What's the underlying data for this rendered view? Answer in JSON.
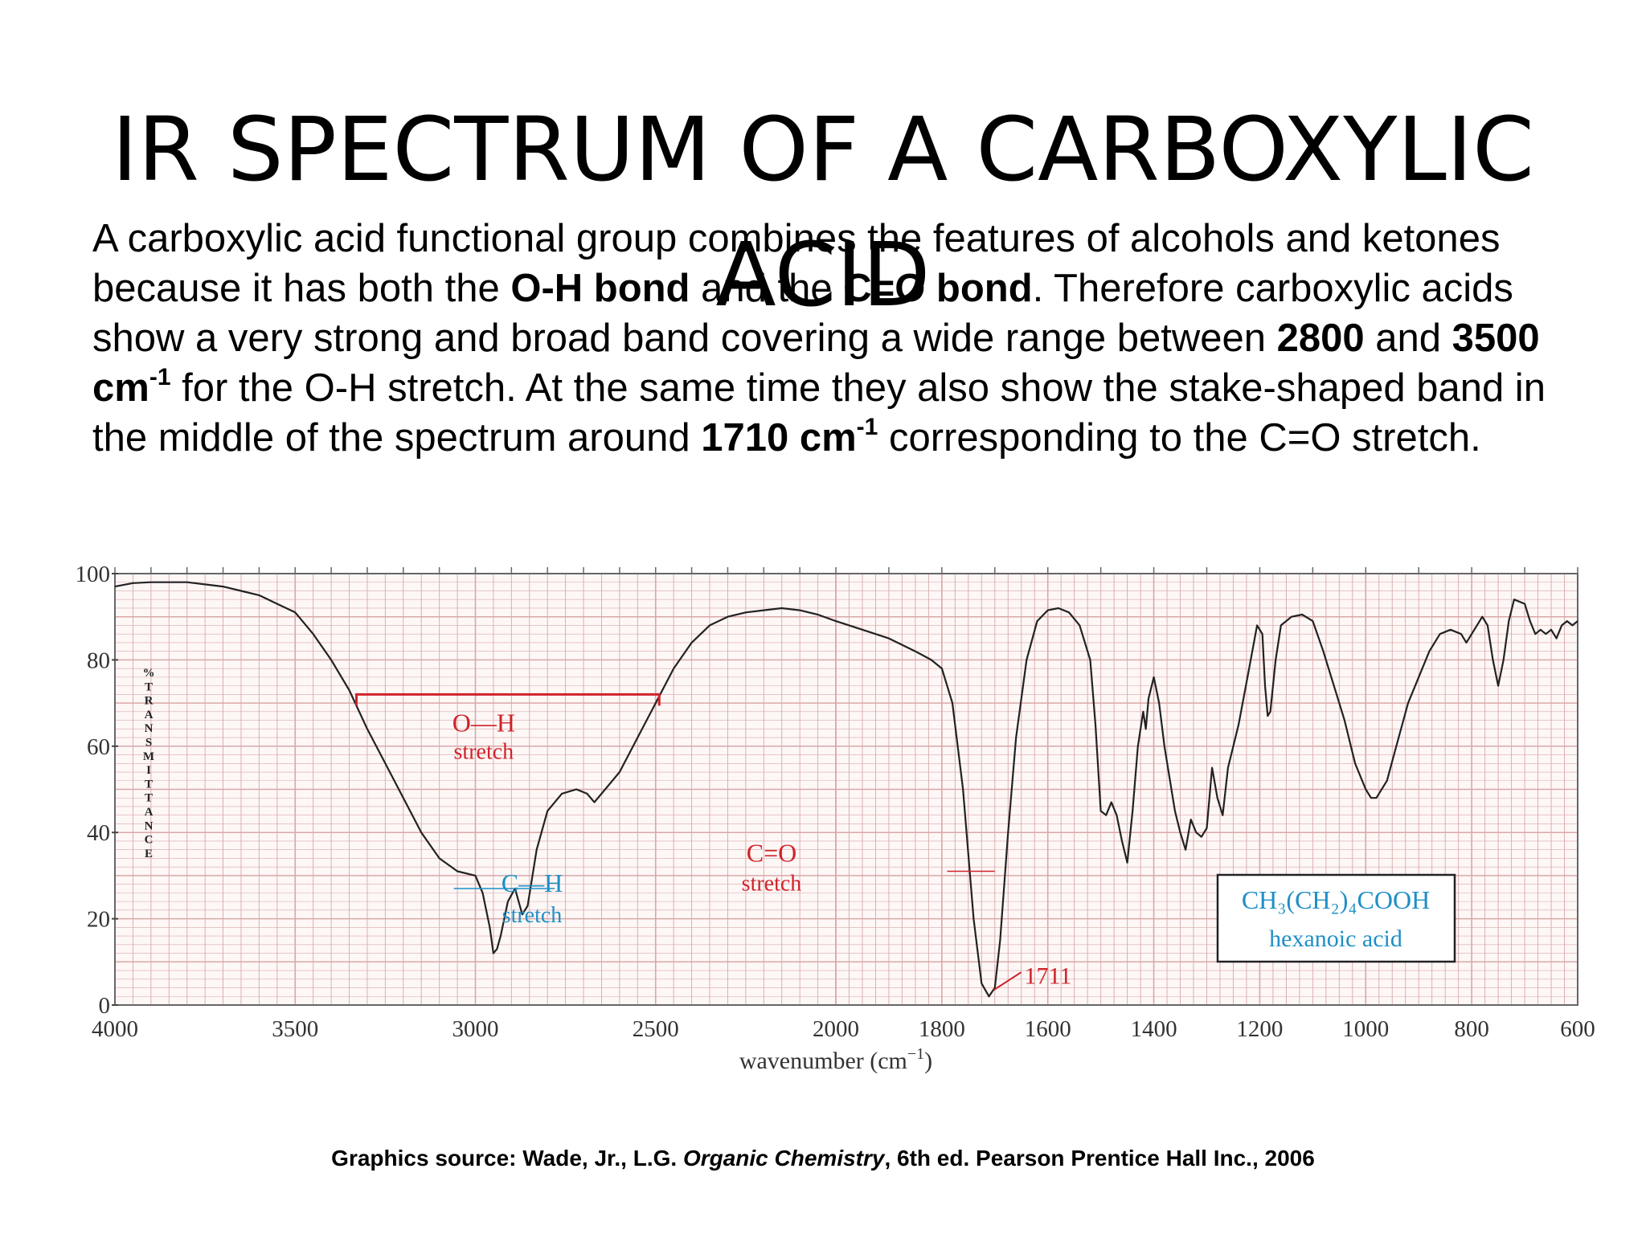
{
  "slide": {
    "title_line1": "IR SPECTRUM OF A CARBOXYLIC",
    "title_line2": "ACID"
  },
  "body": {
    "p1": "A carboxylic acid functional group combines the features of alcohols and ketones because it has both the ",
    "b1": "O-H bond",
    "p2": " and the ",
    "b2": "C=O bond",
    "p3": ". Therefore carboxylic acids show a very strong and broad band covering a wide range between ",
    "b3": "2800",
    "p4": " and ",
    "b4": "3500 cm",
    "sup1": "-1",
    "p5": " for the O-H stretch. At the same time they also show the stake-shaped band in the middle of the spectrum around ",
    "b5": "1710 cm",
    "sup2": "-1",
    "p6": " corresponding to the C=O stretch."
  },
  "source": {
    "prefix": "Graphics source: Wade, Jr., L.G. ",
    "book": "Organic Chemistry",
    "suffix": ", 6th ed. Pearson Prentice Hall Inc., 2006"
  },
  "colors": {
    "grid": "#d8a8a8",
    "trace": "#222222",
    "annotation_red": "#d0232a",
    "annotation_blue": "#1f8fc6"
  },
  "chart_data": {
    "type": "line",
    "xlabel": "wavenumber (cm",
    "xlabel_sup": "−1",
    "xlabel_close": ")",
    "ylabel": "%TRANSMITTANCE",
    "ylim": [
      0,
      100
    ],
    "yticks": [
      "0",
      "20",
      "40",
      "60",
      "80",
      "100"
    ],
    "xticks": [
      "4000",
      "3500",
      "3000",
      "2500",
      "2000",
      "1800",
      "1600",
      "1400",
      "1200",
      "1000",
      "800",
      "600"
    ],
    "x_scale": "split: 4000-2000 at half scale, 2000-600 at double scale",
    "grid": true,
    "series": [
      {
        "points": [
          [
            4000,
            97
          ],
          [
            3950,
            97.8
          ],
          [
            3900,
            98
          ],
          [
            3850,
            98
          ],
          [
            3800,
            98
          ],
          [
            3750,
            97.5
          ],
          [
            3700,
            97
          ],
          [
            3650,
            96
          ],
          [
            3600,
            95
          ],
          [
            3550,
            93
          ],
          [
            3500,
            91
          ],
          [
            3450,
            86
          ],
          [
            3400,
            80
          ],
          [
            3350,
            73
          ],
          [
            3300,
            64
          ],
          [
            3250,
            56
          ],
          [
            3200,
            48
          ],
          [
            3150,
            40
          ],
          [
            3100,
            34
          ],
          [
            3050,
            31
          ],
          [
            3000,
            30
          ],
          [
            2980,
            26
          ],
          [
            2960,
            18
          ],
          [
            2950,
            12
          ],
          [
            2940,
            13
          ],
          [
            2930,
            16
          ],
          [
            2910,
            24
          ],
          [
            2890,
            27
          ],
          [
            2870,
            21
          ],
          [
            2855,
            23
          ],
          [
            2830,
            36
          ],
          [
            2800,
            45
          ],
          [
            2760,
            49
          ],
          [
            2720,
            50
          ],
          [
            2690,
            49
          ],
          [
            2670,
            47
          ],
          [
            2640,
            50
          ],
          [
            2600,
            54
          ],
          [
            2550,
            62
          ],
          [
            2500,
            70
          ],
          [
            2450,
            78
          ],
          [
            2400,
            84
          ],
          [
            2350,
            88
          ],
          [
            2300,
            90
          ],
          [
            2250,
            91
          ],
          [
            2200,
            91.5
          ],
          [
            2150,
            92
          ],
          [
            2100,
            91.5
          ],
          [
            2050,
            90.5
          ],
          [
            2000,
            89
          ],
          [
            1950,
            87
          ],
          [
            1900,
            85
          ],
          [
            1850,
            82
          ],
          [
            1820,
            80
          ],
          [
            1800,
            78
          ],
          [
            1780,
            70
          ],
          [
            1760,
            50
          ],
          [
            1740,
            20
          ],
          [
            1725,
            5
          ],
          [
            1711,
            2
          ],
          [
            1700,
            4
          ],
          [
            1690,
            15
          ],
          [
            1675,
            40
          ],
          [
            1660,
            62
          ],
          [
            1640,
            80
          ],
          [
            1620,
            89
          ],
          [
            1600,
            91.5
          ],
          [
            1580,
            92
          ],
          [
            1560,
            91
          ],
          [
            1540,
            88
          ],
          [
            1520,
            80
          ],
          [
            1510,
            65
          ],
          [
            1500,
            45
          ],
          [
            1490,
            44
          ],
          [
            1480,
            47
          ],
          [
            1470,
            44
          ],
          [
            1460,
            38
          ],
          [
            1450,
            33
          ],
          [
            1440,
            45
          ],
          [
            1430,
            60
          ],
          [
            1420,
            68
          ],
          [
            1415,
            64
          ],
          [
            1410,
            71
          ],
          [
            1400,
            76
          ],
          [
            1390,
            70
          ],
          [
            1380,
            60
          ],
          [
            1360,
            45
          ],
          [
            1350,
            40
          ],
          [
            1340,
            36
          ],
          [
            1330,
            43
          ],
          [
            1320,
            40
          ],
          [
            1310,
            39
          ],
          [
            1300,
            41
          ],
          [
            1290,
            55
          ],
          [
            1280,
            48
          ],
          [
            1270,
            44
          ],
          [
            1260,
            55
          ],
          [
            1240,
            65
          ],
          [
            1220,
            78
          ],
          [
            1205,
            88
          ],
          [
            1195,
            86
          ],
          [
            1190,
            74
          ],
          [
            1185,
            67
          ],
          [
            1180,
            68
          ],
          [
            1170,
            80
          ],
          [
            1160,
            88
          ],
          [
            1140,
            90
          ],
          [
            1120,
            90.5
          ],
          [
            1100,
            89
          ],
          [
            1080,
            82
          ],
          [
            1060,
            74
          ],
          [
            1040,
            66
          ],
          [
            1020,
            56
          ],
          [
            1000,
            50
          ],
          [
            990,
            48
          ],
          [
            980,
            48
          ],
          [
            960,
            52
          ],
          [
            940,
            61
          ],
          [
            920,
            70
          ],
          [
            900,
            76
          ],
          [
            880,
            82
          ],
          [
            860,
            86
          ],
          [
            840,
            87
          ],
          [
            820,
            86
          ],
          [
            810,
            84
          ],
          [
            800,
            86
          ],
          [
            790,
            88
          ],
          [
            780,
            90
          ],
          [
            770,
            88
          ],
          [
            760,
            80
          ],
          [
            750,
            74
          ],
          [
            740,
            80
          ],
          [
            730,
            89
          ],
          [
            720,
            94
          ],
          [
            700,
            93
          ],
          [
            690,
            89
          ],
          [
            680,
            86
          ],
          [
            670,
            87
          ],
          [
            660,
            86
          ],
          [
            650,
            87
          ],
          [
            640,
            85
          ],
          [
            630,
            88
          ],
          [
            620,
            89
          ],
          [
            610,
            88
          ],
          [
            600,
            89
          ]
        ]
      }
    ],
    "annotations": [
      {
        "label1": "O—H",
        "label2": "stretch",
        "range": [
          3330,
          2490
        ],
        "y": 72
      },
      {
        "label1": "C—H",
        "label2": "stretch",
        "x": 2920,
        "y": 27
      },
      {
        "label1": "C=O",
        "label2": "stretch",
        "x": 1725,
        "y": 31
      },
      {
        "label": "1711",
        "x": 1711,
        "y": 2
      }
    ],
    "compound": {
      "formula": "CH₃(CH₂)₄COOH",
      "name": "hexanoic acid"
    }
  }
}
